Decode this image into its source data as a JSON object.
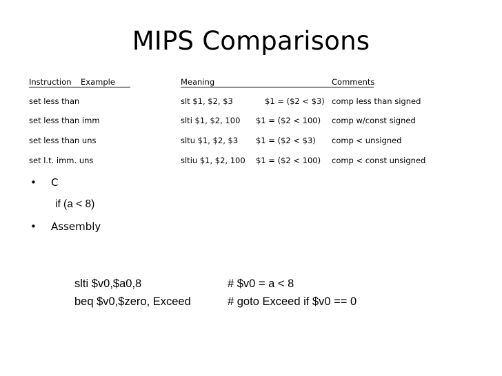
{
  "slide": {
    "title": "MIPS Comparisons",
    "table": {
      "headers": {
        "instruction": "Instruction",
        "example": "Example",
        "meaning": "Meaning",
        "comments": "Comments"
      },
      "rows": [
        {
          "instruction": "set less than",
          "example": "slt $1, $2, $3",
          "meaning": "$1 = ($2 < $3)",
          "comments": "comp less than signed"
        },
        {
          "instruction": "set less than imm",
          "example": "slti $1, $2, 100",
          "meaning": "$1 = ($2 < 100)",
          "comments": "comp w/const signed"
        },
        {
          "instruction": "set less than uns",
          "example": "sltu $1, $2, $3",
          "meaning": "$1 =  ($2 < $3)",
          "comments": "comp < unsigned"
        },
        {
          "instruction": "set l.t. imm. uns",
          "example": "sltiu $1, $2, 100",
          "meaning": "$1 =  ($2 < 100)",
          "comments": "comp < const unsigned"
        }
      ]
    },
    "bullets": {
      "bullet_char": "•",
      "c_label": "C",
      "c_code": "if (a < 8)",
      "assembly_label": "Assembly"
    },
    "assembly": [
      {
        "instruction": "slti $v0,$a0,8",
        "comment": "# $v0 = a < 8"
      },
      {
        "instruction": "beq $v0,$zero, Exceed",
        "comment": "# goto Exceed if $v0 == 0"
      }
    ]
  }
}
